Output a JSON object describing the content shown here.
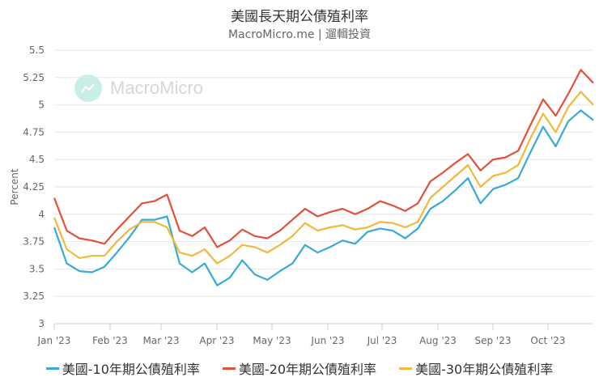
{
  "title": "美國長天期公債殖利率",
  "subtitle": "MacroMicro.me | 遛輯投資",
  "watermark": {
    "text": "MacroMicro",
    "icon": "chart-logo-icon"
  },
  "colors": {
    "ten": "#3aa9d4",
    "twenty": "#e0513b",
    "thirty": "#f0b93a",
    "grid": "#e6e6e6",
    "axis": "#cccccc"
  },
  "legend": [
    {
      "label": "美國-10年期公債殖利率",
      "color": "#3aa9d4"
    },
    {
      "label": "美國-20年期公債殖利率",
      "color": "#e0513b"
    },
    {
      "label": "美國-30年期公債殖利率",
      "color": "#f0b93a"
    }
  ],
  "chart_data": {
    "type": "line",
    "title": "美國長天期公債殖利率",
    "subtitle": "MacroMicro.me | 遛輯投資",
    "xlabel": "",
    "ylabel": "Percent",
    "ylim": [
      3,
      5.5
    ],
    "yticks": [
      "3",
      "3.25",
      "3.5",
      "3.75",
      "4",
      "4.25",
      "4.5",
      "4.75",
      "5",
      "5.25",
      "5.5"
    ],
    "xticks": [
      "Jan '23",
      "Feb '23",
      "Mar '23",
      "Apr '23",
      "May '23",
      "Jun '23",
      "Jul '23",
      "Aug '23",
      "Sep '23",
      "Oct '23"
    ],
    "grid": true,
    "legend_position": "bottom",
    "x": [
      "2023-01-03",
      "2023-01-10",
      "2023-01-17",
      "2023-01-24",
      "2023-01-31",
      "2023-02-07",
      "2023-02-14",
      "2023-02-21",
      "2023-02-28",
      "2023-03-07",
      "2023-03-14",
      "2023-03-21",
      "2023-03-28",
      "2023-04-04",
      "2023-04-11",
      "2023-04-18",
      "2023-04-25",
      "2023-05-02",
      "2023-05-09",
      "2023-05-16",
      "2023-05-23",
      "2023-05-30",
      "2023-06-06",
      "2023-06-13",
      "2023-06-20",
      "2023-06-27",
      "2023-07-04",
      "2023-07-11",
      "2023-07-18",
      "2023-07-25",
      "2023-08-01",
      "2023-08-08",
      "2023-08-15",
      "2023-08-22",
      "2023-08-29",
      "2023-09-05",
      "2023-09-12",
      "2023-09-19",
      "2023-09-26",
      "2023-10-03",
      "2023-10-10",
      "2023-10-17",
      "2023-10-24",
      "2023-10-31"
    ],
    "series": [
      {
        "name": "美國-10年期公債殖利率",
        "values": [
          3.88,
          3.55,
          3.48,
          3.47,
          3.52,
          3.65,
          3.79,
          3.95,
          3.95,
          3.98,
          3.55,
          3.47,
          3.55,
          3.35,
          3.42,
          3.58,
          3.45,
          3.4,
          3.48,
          3.55,
          3.72,
          3.65,
          3.7,
          3.76,
          3.73,
          3.84,
          3.87,
          3.85,
          3.78,
          3.87,
          4.05,
          4.12,
          4.22,
          4.33,
          4.1,
          4.23,
          4.27,
          4.33,
          4.57,
          4.8,
          4.62,
          4.85,
          4.95,
          4.86
        ]
      },
      {
        "name": "美國-20年期公債殖利率",
        "values": [
          4.15,
          3.85,
          3.78,
          3.76,
          3.73,
          3.86,
          3.98,
          4.1,
          4.12,
          4.18,
          3.85,
          3.8,
          3.88,
          3.7,
          3.76,
          3.86,
          3.8,
          3.78,
          3.85,
          3.95,
          4.05,
          3.98,
          4.02,
          4.05,
          4.0,
          4.05,
          4.12,
          4.08,
          4.03,
          4.1,
          4.3,
          4.38,
          4.47,
          4.55,
          4.4,
          4.5,
          4.52,
          4.58,
          4.82,
          5.05,
          4.9,
          5.1,
          5.32,
          5.2
        ]
      },
      {
        "name": "美國-30年期公債殖利率",
        "values": [
          3.97,
          3.68,
          3.6,
          3.62,
          3.62,
          3.75,
          3.86,
          3.93,
          3.93,
          3.88,
          3.65,
          3.62,
          3.68,
          3.55,
          3.62,
          3.72,
          3.7,
          3.65,
          3.72,
          3.8,
          3.92,
          3.85,
          3.88,
          3.9,
          3.86,
          3.88,
          3.93,
          3.92,
          3.88,
          3.93,
          4.15,
          4.25,
          4.35,
          4.45,
          4.25,
          4.35,
          4.38,
          4.45,
          4.7,
          4.92,
          4.75,
          4.98,
          5.12,
          5.0
        ]
      }
    ]
  }
}
